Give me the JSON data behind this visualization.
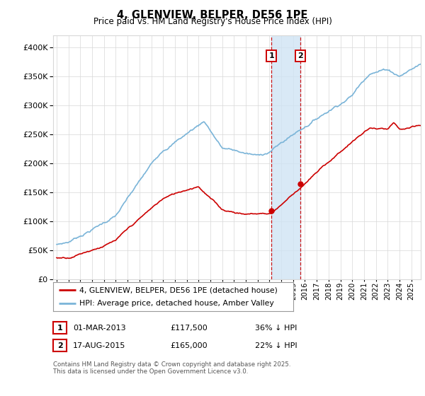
{
  "title": "4, GLENVIEW, BELPER, DE56 1PE",
  "subtitle": "Price paid vs. HM Land Registry's House Price Index (HPI)",
  "ylim": [
    0,
    420000
  ],
  "yticks": [
    0,
    50000,
    100000,
    150000,
    200000,
    250000,
    300000,
    350000,
    400000
  ],
  "xlim_start": 1994.7,
  "xlim_end": 2025.8,
  "purchase1_date": 2013.17,
  "purchase1_price": 117500,
  "purchase2_date": 2015.63,
  "purchase2_price": 165000,
  "hpi_color": "#7ab4d8",
  "price_color": "#cc0000",
  "annotation_box_color": "#cc0000",
  "shaded_region_color": "#d0e4f4",
  "legend_label_price": "4, GLENVIEW, BELPER, DE56 1PE (detached house)",
  "legend_label_hpi": "HPI: Average price, detached house, Amber Valley",
  "table_row1": [
    "1",
    "01-MAR-2013",
    "£117,500",
    "36% ↓ HPI"
  ],
  "table_row2": [
    "2",
    "17-AUG-2015",
    "£165,000",
    "22% ↓ HPI"
  ],
  "footer": "Contains HM Land Registry data © Crown copyright and database right 2025.\nThis data is licensed under the Open Government Licence v3.0.",
  "background_color": "#ffffff",
  "grid_color": "#d8d8d8"
}
